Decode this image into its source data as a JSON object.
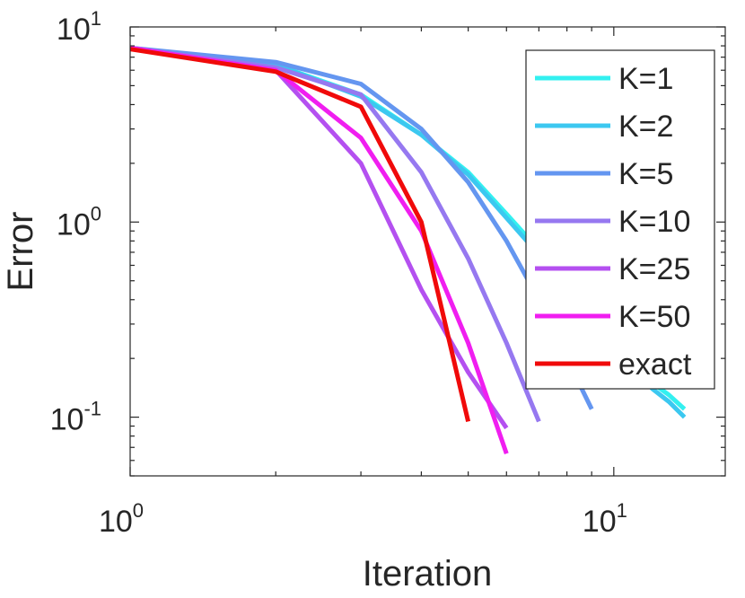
{
  "chart_data": {
    "type": "line",
    "title": "",
    "xlabel": "Iteration",
    "ylabel": "Error",
    "xscale": "log",
    "yscale": "log",
    "xlim": [
      1,
      17
    ],
    "ylim": [
      0.05,
      10
    ],
    "xticks": [
      {
        "value": 1,
        "base": "10",
        "exp": "0"
      },
      {
        "value": 10,
        "base": "10",
        "exp": "1"
      }
    ],
    "yticks": [
      {
        "value": 0.1,
        "base": "10",
        "exp": "-1"
      },
      {
        "value": 1,
        "base": "10",
        "exp": "0"
      },
      {
        "value": 10,
        "base": "10",
        "exp": "1"
      }
    ],
    "grid": false,
    "legend_position": "top-right",
    "series": [
      {
        "name": "K=1",
        "color": "#33f0f0",
        "x": [
          1,
          2,
          3,
          4,
          5,
          6,
          7,
          8,
          9,
          10,
          11,
          12,
          13,
          14
        ],
        "y": [
          7.8,
          6.4,
          4.5,
          2.8,
          1.8,
          1.1,
          0.72,
          0.5,
          0.35,
          0.25,
          0.19,
          0.15,
          0.13,
          0.11
        ]
      },
      {
        "name": "K=2",
        "color": "#3cc8f0",
        "x": [
          1,
          2,
          3,
          4,
          5,
          6,
          7,
          8,
          9,
          10,
          11,
          12,
          13,
          14
        ],
        "y": [
          7.8,
          6.4,
          4.4,
          2.8,
          1.75,
          1.05,
          0.68,
          0.47,
          0.33,
          0.24,
          0.18,
          0.14,
          0.12,
          0.1
        ]
      },
      {
        "name": "K=5",
        "color": "#6496f0",
        "x": [
          1,
          2,
          3,
          4,
          5,
          6,
          7,
          8,
          9
        ],
        "y": [
          7.8,
          6.6,
          5.1,
          3.0,
          1.6,
          0.8,
          0.4,
          0.2,
          0.11
        ]
      },
      {
        "name": "K=10",
        "color": "#9678f0",
        "x": [
          1,
          2,
          3,
          4,
          5,
          6,
          7
        ],
        "y": [
          7.8,
          6.2,
          4.5,
          1.8,
          0.65,
          0.24,
          0.095
        ]
      },
      {
        "name": "K=25",
        "color": "#b450f0",
        "x": [
          1,
          2,
          3,
          4,
          5,
          6
        ],
        "y": [
          7.8,
          6.0,
          2.0,
          0.45,
          0.17,
          0.088
        ]
      },
      {
        "name": "K=50",
        "color": "#f01ef0",
        "x": [
          1,
          2,
          3,
          4,
          5,
          6
        ],
        "y": [
          7.8,
          6.0,
          2.7,
          0.9,
          0.24,
          0.065
        ]
      },
      {
        "name": "exact",
        "color": "#f00a0a",
        "x": [
          1,
          2,
          3,
          4,
          5
        ],
        "y": [
          7.7,
          5.9,
          3.9,
          1.0,
          0.095
        ]
      }
    ]
  }
}
